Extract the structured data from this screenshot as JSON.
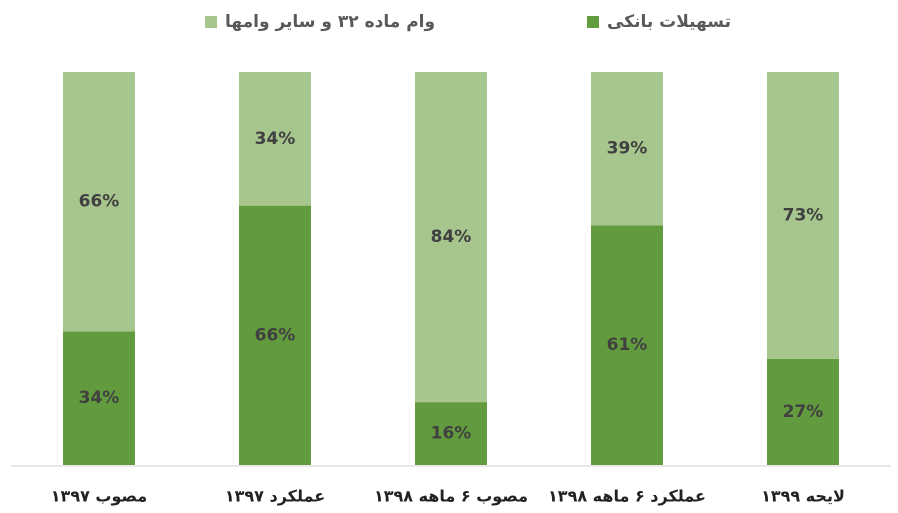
{
  "chart_data": {
    "type": "stacked_bar",
    "categories": [
      "مصوب ۱۳۹۷",
      "عملکرد ۱۳۹۷",
      "مصوب ۶ ماهه ۱۳۹۸",
      "عملکرد ۶ ماهه ۱۳۹۸",
      "لایحه ۱۳۹۹"
    ],
    "series": [
      {
        "name": "تسهیلات بانکی",
        "color": "#629a3e",
        "values": [
          34,
          66,
          16,
          61,
          27
        ],
        "value_labels": [
          "34%",
          "66%",
          "16%",
          "61%",
          "27%"
        ]
      },
      {
        "name": "وام ماده ۳۲ و سایر وامها",
        "color": "#a7c68e",
        "values": [
          66,
          34,
          84,
          39,
          73
        ],
        "value_labels": [
          "66%",
          "34%",
          "84%",
          "39%",
          "73%"
        ]
      }
    ],
    "ylim": [
      0,
      100
    ]
  }
}
